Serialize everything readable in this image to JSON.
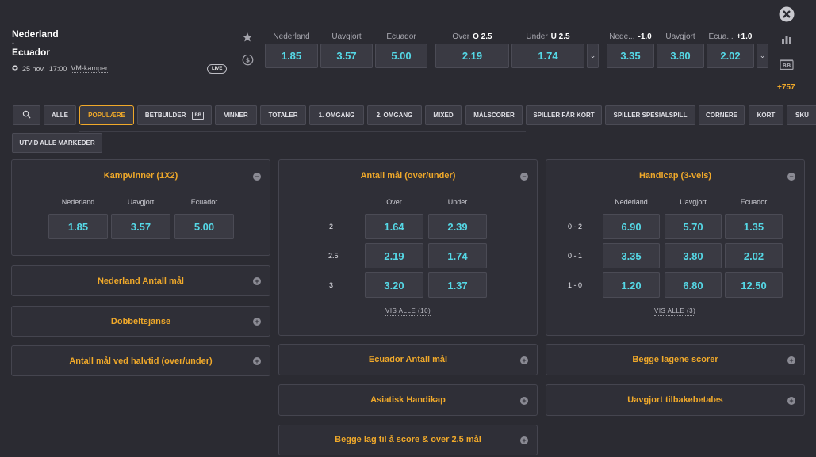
{
  "match": {
    "home": "Nederland",
    "dash": "-",
    "away": "Ecuador",
    "date": "25 nov.",
    "time": "17:00",
    "competition": "VM-kamper",
    "live_label": "LIVE",
    "more_markets": "+757"
  },
  "header_markets": [
    {
      "labels": [
        {
          "text": "Nederland"
        },
        {
          "text": "Uavgjort"
        },
        {
          "text": "Ecuador"
        }
      ],
      "odds": [
        "1.85",
        "3.57",
        "5.00"
      ]
    },
    {
      "labels": [
        {
          "text": "Over",
          "strong": "O 2.5"
        },
        {
          "text": "Under",
          "strong": "U 2.5"
        }
      ],
      "odds": [
        "2.19",
        "1.74"
      ]
    },
    {
      "labels": [
        {
          "text": "Nede...",
          "strong": "-1.0"
        },
        {
          "text": "Uavgjort"
        },
        {
          "text": "Ecua...",
          "strong": "+1.0"
        }
      ],
      "odds": [
        "3.35",
        "3.80",
        "2.02"
      ]
    }
  ],
  "icons": {
    "star": "star-icon",
    "dollar": "dollar-circle-icon",
    "close": "close-icon",
    "stats": "bar-chart-icon",
    "betbuilder": "betbuilder-icon",
    "search": "search-icon",
    "football": "football-icon"
  },
  "tabs": [
    "ALLE",
    "POPULÆRE",
    "BETBUILDER",
    "VINNER",
    "TOTALER",
    "1. OMGANG",
    "2. OMGANG",
    "MIXED",
    "MÅLSCORER",
    "SPILLER FÅR KORT",
    "SPILLER SPESIALSPILL",
    "CORNERE",
    "KORT",
    "SKU"
  ],
  "tab_bb_badge": "BB",
  "active_tab": "POPULÆRE",
  "expand_all": "UTVID ALLE MARKEDER",
  "kampvinner": {
    "title": "Kampvinner (1X2)",
    "columns": [
      "Nederland",
      "Uavgjort",
      "Ecuador"
    ],
    "odds": [
      "1.85",
      "3.57",
      "5.00"
    ]
  },
  "antall_mal": {
    "title": "Antall mål (over/under)",
    "columns": [
      "Over",
      "Under"
    ],
    "rows": [
      {
        "label": "2",
        "odds": [
          "1.64",
          "2.39"
        ]
      },
      {
        "label": "2.5",
        "odds": [
          "2.19",
          "1.74"
        ]
      },
      {
        "label": "3",
        "odds": [
          "3.20",
          "1.37"
        ]
      }
    ],
    "see_all": "VIS ALLE (10)"
  },
  "handicap": {
    "title": "Handicap (3-veis)",
    "columns": [
      "Nederland",
      "Uavgjort",
      "Ecuador"
    ],
    "rows": [
      {
        "label": "0 - 2",
        "odds": [
          "6.90",
          "5.70",
          "1.35"
        ]
      },
      {
        "label": "0 - 1",
        "odds": [
          "3.35",
          "3.80",
          "2.02"
        ]
      },
      {
        "label": "1 - 0",
        "odds": [
          "1.20",
          "6.80",
          "12.50"
        ]
      }
    ],
    "see_all": "VIS ALLE (3)"
  },
  "collapsed_markets": {
    "left": [
      "Nederland Antall mål",
      "Dobbeltsjanse",
      "Antall mål ved halvtid (over/under)"
    ],
    "middle": [
      "Ecuador Antall mål",
      "Asiatisk Handikap",
      "Begge lag til å score & over 2.5 mål"
    ],
    "right": [
      "Begge lagene scorer",
      "Uavgjort tilbakebetales"
    ]
  },
  "collapse_symbol": "−",
  "expand_symbol": "+",
  "chevron": "⌄"
}
